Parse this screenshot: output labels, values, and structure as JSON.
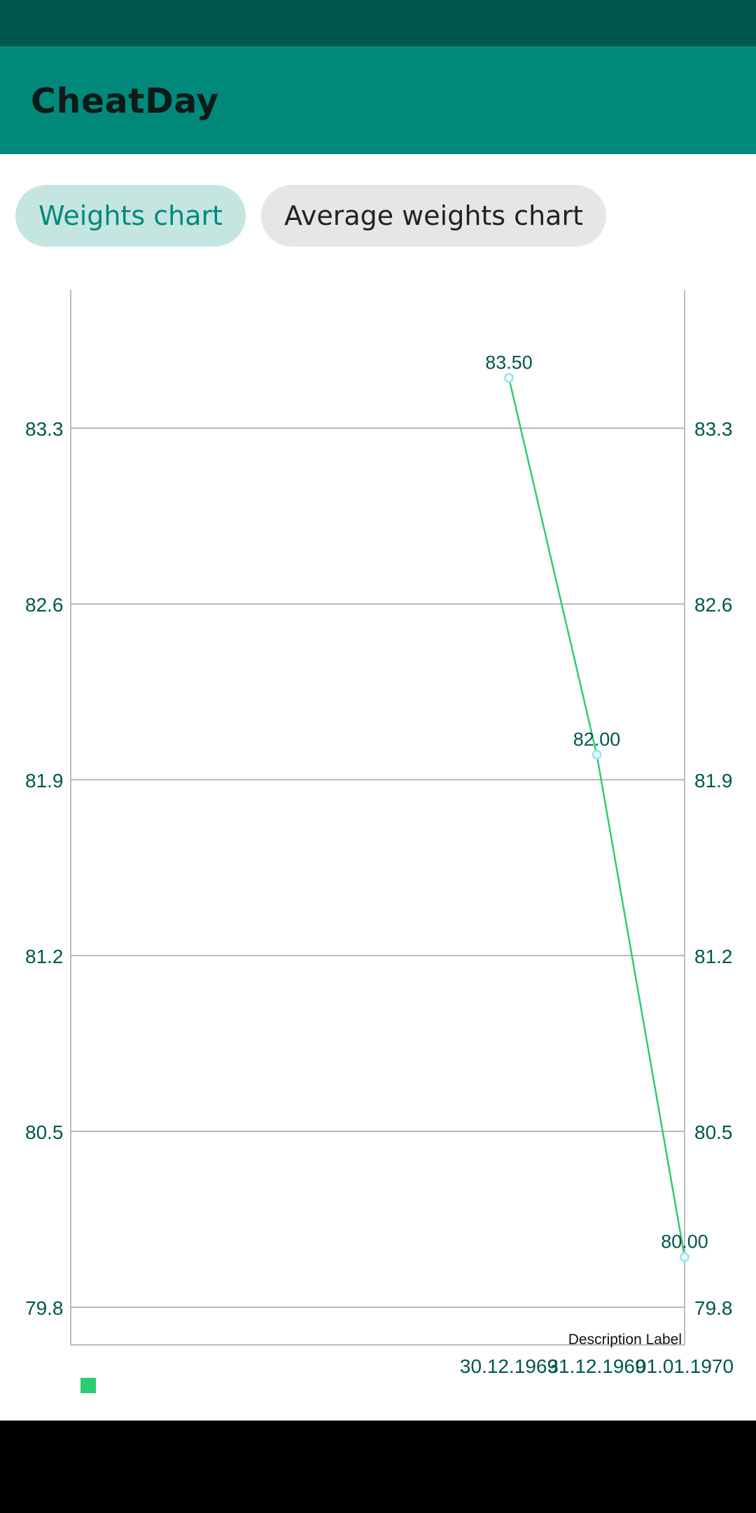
{
  "app": {
    "title": "CheatDay"
  },
  "tabs": [
    {
      "label": "Weights chart",
      "selected": true
    },
    {
      "label": "Average weights chart",
      "selected": false
    }
  ],
  "colors": {
    "primary": "#00897b",
    "primary_dark": "#00574b",
    "line": "#2ecc71",
    "point": "#9be7f0",
    "axis_text": "#00574b"
  },
  "chart_data": {
    "type": "line",
    "title": "",
    "xlabel": "",
    "ylabel": "",
    "categories": [
      "30.12.1969",
      "31.12.1969",
      "01.01.1970"
    ],
    "series": [
      {
        "values": [
          83.5,
          82.0,
          80.0
        ]
      }
    ],
    "data_labels": [
      "83.50",
      "82.00",
      "80.00"
    ],
    "y_ticks": [
      "83.3",
      "82.6",
      "81.9",
      "81.2",
      "80.5",
      "79.8"
    ],
    "ylim": [
      79.65,
      83.85
    ],
    "dual_y_axis": true,
    "grid": true,
    "legend": "bottom-left",
    "description": "Description Label"
  }
}
